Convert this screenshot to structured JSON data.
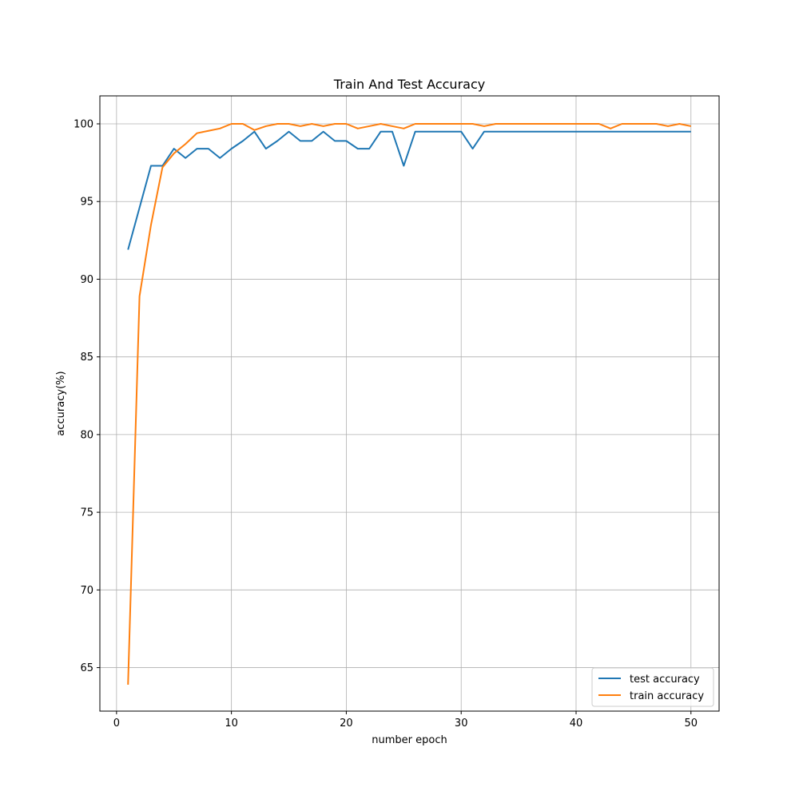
{
  "chart_data": {
    "type": "line",
    "title": "Train And Test Accuracy",
    "xlabel": "number epoch",
    "ylabel": "accuracy(%)",
    "xlim": [
      -1.45,
      52.45
    ],
    "ylim": [
      62.2,
      101.8
    ],
    "xticks": [
      0,
      10,
      20,
      30,
      40,
      50
    ],
    "yticks": [
      65,
      70,
      75,
      80,
      85,
      90,
      95,
      100
    ],
    "grid": true,
    "legend_position": "lower-right",
    "x": [
      1,
      2,
      3,
      4,
      5,
      6,
      7,
      8,
      9,
      10,
      11,
      12,
      13,
      14,
      15,
      16,
      17,
      18,
      19,
      20,
      21,
      22,
      23,
      24,
      25,
      26,
      27,
      28,
      29,
      30,
      31,
      32,
      33,
      34,
      35,
      36,
      37,
      38,
      39,
      40,
      41,
      42,
      43,
      44,
      45,
      46,
      47,
      48,
      49,
      50
    ],
    "series": [
      {
        "name": "test accuracy",
        "color": "#1f77b4",
        "values": [
          91.9,
          94.6,
          97.3,
          97.3,
          98.4,
          97.8,
          98.4,
          98.4,
          97.8,
          98.4,
          98.9,
          99.5,
          98.4,
          98.9,
          99.5,
          98.9,
          98.9,
          99.5,
          98.9,
          98.9,
          98.4,
          98.4,
          99.5,
          99.5,
          97.3,
          99.5,
          99.5,
          99.5,
          99.5,
          99.5,
          98.4,
          99.5,
          99.5,
          99.5,
          99.5,
          99.5,
          99.5,
          99.5,
          99.5,
          99.5,
          99.5,
          99.5,
          99.5,
          99.5,
          99.5,
          99.5,
          99.5,
          99.5,
          99.5,
          99.5
        ]
      },
      {
        "name": "train accuracy",
        "color": "#ff7f0e",
        "values": [
          63.9,
          88.9,
          93.5,
          97.2,
          98.1,
          98.7,
          99.4,
          99.55,
          99.7,
          100.0,
          100.0,
          99.6,
          99.85,
          100.0,
          100.0,
          99.85,
          100.0,
          99.85,
          100.0,
          100.0,
          99.7,
          99.85,
          100.0,
          99.85,
          99.7,
          100.0,
          100.0,
          100.0,
          100.0,
          100.0,
          100.0,
          99.85,
          100.0,
          100.0,
          100.0,
          100.0,
          100.0,
          100.0,
          100.0,
          100.0,
          100.0,
          100.0,
          99.7,
          100.0,
          100.0,
          100.0,
          100.0,
          99.85,
          100.0,
          99.85
        ]
      }
    ]
  }
}
